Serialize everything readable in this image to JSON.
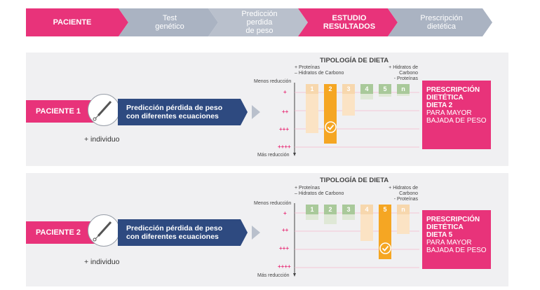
{
  "process_steps": [
    {
      "label": "PACIENTE",
      "active": true
    },
    {
      "label": "Test\ngenético",
      "active": false
    },
    {
      "label": "Predicción\nperdida\nde peso",
      "active": false
    },
    {
      "label": "ESTUDIO\nRESULTADOS",
      "active": true
    },
    {
      "label": "Prescripción\ndietética",
      "active": false
    }
  ],
  "patients": [
    {
      "label": "PACIENTE 1",
      "prediction": "Predicción pérdida de peso\ncon diferentes ecuaciones",
      "individual": "+ individuo",
      "chart_title": "TIPOLOGÍA DE DIETA",
      "left_legend": "+ Proteínas\n– Hidratos de Carbono",
      "right_legend": "+ Hidratos de Carbono\n- Proteínas",
      "less": "Menos reducción",
      "more": "Más reducción",
      "levels": [
        "+",
        "++",
        "+++",
        "++++"
      ],
      "diets": [
        "1",
        "2",
        "3",
        "4",
        "5",
        "n"
      ],
      "selected": "2",
      "prescription_bold": "PRESCRIPCIÓN\nDIETÉTICA\nDIETA 2",
      "prescription_text": "PARA MAYOR\nBAJADA DE PESO"
    },
    {
      "label": "PACIENTE 2",
      "prediction": "Predicción pérdida de peso\ncon diferentes ecuaciones",
      "individual": "+ individuo",
      "chart_title": "TIPOLOGÍA DE DIETA",
      "left_legend": "+ Proteínas\n– Hidratos de Carbono",
      "right_legend": "+ Hidratos de Carbono\n- Proteínas",
      "less": "Menos reducción",
      "more": "Más reducción",
      "levels": [
        "+",
        "++",
        "+++",
        "++++"
      ],
      "diets": [
        "1",
        "2",
        "3",
        "4",
        "5",
        "n"
      ],
      "selected": "5",
      "prescription_bold": "PRESCRIPCIÓN\nDIETÉTICA\nDIETA 5",
      "prescription_text": "PARA MAYOR\nBAJADA DE PESO"
    }
  ],
  "colors": {
    "pink": "#e8337a",
    "navy": "#2e4a80",
    "grey_step": "#aab3c2",
    "orange": "#f5a623",
    "light_orange": "#fbe0c0",
    "green": "#a9c99a"
  },
  "icons": [
    "test-tube-swab-icon",
    "checkmark-icon",
    "arrow-right-icon"
  ]
}
